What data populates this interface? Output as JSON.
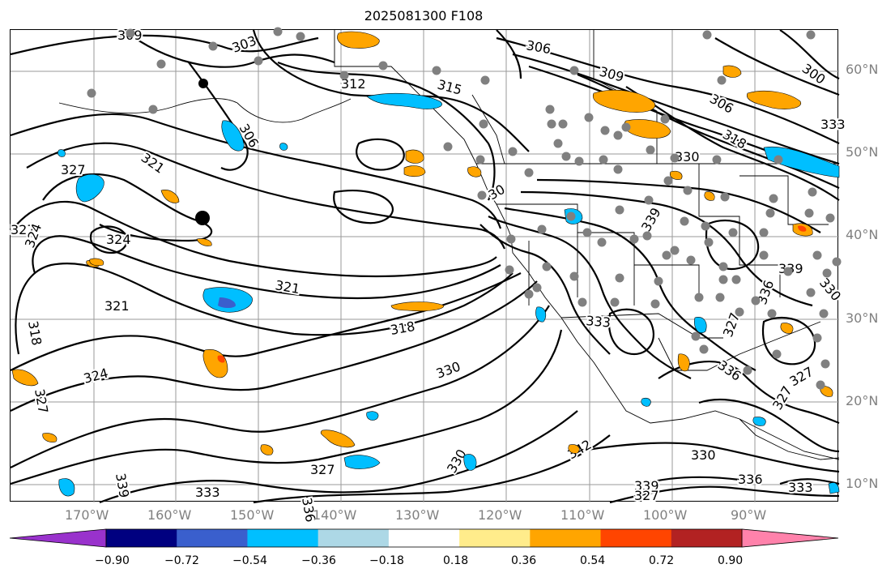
{
  "figure": {
    "title": "2025081300 F108"
  },
  "lat_labels": [
    "60°N",
    "50°N",
    "40°N",
    "30°N",
    "20°N",
    "10°N"
  ],
  "lon_labels": [
    "170°W",
    "160°W",
    "150°W",
    "140°W",
    "130°W",
    "120°W",
    "110°W",
    "100°W",
    "90°W"
  ],
  "contour_labels": [
    "309",
    "303",
    "306",
    "312",
    "315",
    "306",
    "309",
    "300",
    "306",
    "318",
    "327",
    "321",
    "327",
    "324",
    "324",
    "321",
    "321",
    "318",
    "318",
    "324",
    "327",
    "330",
    "339",
    "327",
    "333",
    "339",
    "333",
    "336",
    "336",
    "339",
    "333",
    "330",
    "330",
    "342",
    "339",
    "327",
    "336",
    "330",
    "327",
    "330",
    "30",
    "327",
    "327",
    "333",
    "336"
  ],
  "colorbar": {
    "ticks": [
      "−0.90",
      "−0.72",
      "−0.54",
      "−0.36",
      "−0.18",
      "0.18",
      "0.36",
      "0.54",
      "0.72",
      "0.90"
    ],
    "colors": [
      "#9932cc",
      "#000080",
      "#3a5fcd",
      "#00bfff",
      "#add8e6",
      "#ffffff",
      "#ffec8b",
      "#ffa500",
      "#ff4500",
      "#b22222",
      "#ff82ab"
    ]
  },
  "overlay_colors": {
    "positive": "#ffa500",
    "positive_strong": "#ff4500",
    "negative": "#00bfff",
    "negative_strong": "#3a5fcd",
    "points": "#808080",
    "contour": "#000000"
  }
}
